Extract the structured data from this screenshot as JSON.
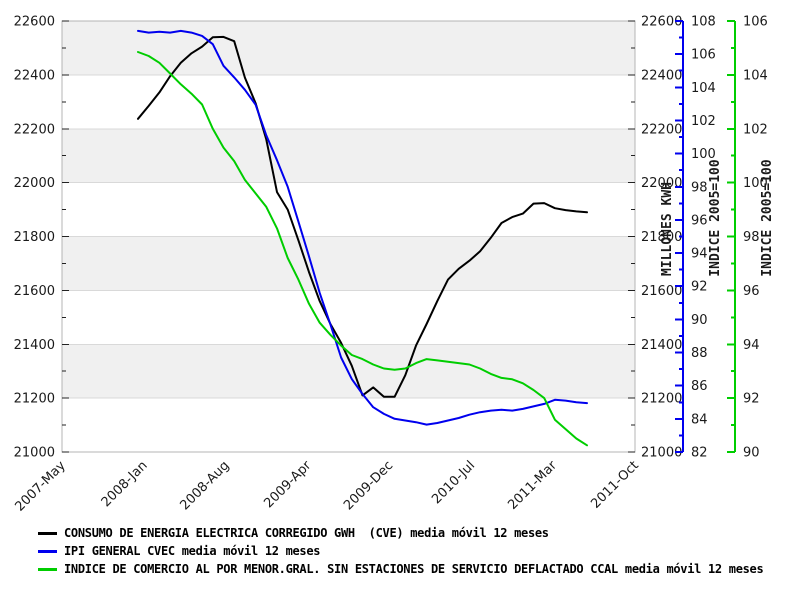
{
  "figure": {
    "background": "#ffffff"
  },
  "chart_data": {
    "type": "line",
    "title": "",
    "x_axis": {
      "tick_labels": [
        "2007-May",
        "2008-Jan",
        "2008-Aug",
        "2009-Apr",
        "2009-Dec",
        "2010-Jul",
        "2011-Mar",
        "2011-Oct"
      ],
      "label_rotation_deg": -45
    },
    "axes": {
      "kwh": {
        "side": "left-and-right",
        "title": "MILLONES KWH",
        "min": 21000,
        "max": 22600,
        "tick_step": 200,
        "minor_step": 100,
        "tick_labels": [
          "21000",
          "21200",
          "21400",
          "21600",
          "21800",
          "22000",
          "22200",
          "22400",
          "22600"
        ],
        "color": "#000000"
      },
      "ipi": {
        "side": "right",
        "title": "INDICE 2005=100",
        "min": 82,
        "max": 108,
        "tick_step": 2,
        "minor_step": 1,
        "tick_labels": [
          "82",
          "84",
          "86",
          "88",
          "90",
          "92",
          "94",
          "96",
          "98",
          "100",
          "102",
          "104",
          "106",
          "108"
        ],
        "color": "#0000ee"
      },
      "comercio": {
        "side": "far-right",
        "title": "INDICE 2005=100",
        "min": 90,
        "max": 106,
        "tick_step": 2,
        "minor_step": 1,
        "tick_labels": [
          "90",
          "92",
          "94",
          "96",
          "98",
          "100",
          "102",
          "104",
          "106"
        ],
        "color": "#00cd00"
      }
    },
    "x_months": [
      "2007-12",
      "2008-01",
      "2008-02",
      "2008-03",
      "2008-04",
      "2008-05",
      "2008-06",
      "2008-07",
      "2008-08",
      "2008-09",
      "2008-10",
      "2008-11",
      "2008-12",
      "2009-01",
      "2009-02",
      "2009-03",
      "2009-04",
      "2009-05",
      "2009-06",
      "2009-07",
      "2009-08",
      "2009-09",
      "2009-10",
      "2009-11",
      "2009-12",
      "2010-01",
      "2010-02",
      "2010-03",
      "2010-04",
      "2010-05",
      "2010-06",
      "2010-07",
      "2010-08",
      "2010-09",
      "2010-10",
      "2010-11",
      "2010-12",
      "2011-01",
      "2011-02",
      "2011-03",
      "2011-04",
      "2011-05",
      "2011-06"
    ],
    "series": [
      {
        "name": "CONSUMO DE ENERGIA ELECTRICA CORREGIDO GWH  (CVE) media móvil 12 meses",
        "axis": "kwh",
        "color": "#000000",
        "values": [
          22237,
          22285,
          22335,
          22395,
          22445,
          22480,
          22505,
          22540,
          22541,
          22525,
          22390,
          22295,
          22160,
          21965,
          21900,
          21786,
          21668,
          21560,
          21475,
          21405,
          21320,
          21210,
          21240,
          21205,
          21205,
          21285,
          21395,
          21475,
          21560,
          21640,
          21680,
          21710,
          21745,
          21795,
          21850,
          21872,
          21885,
          21922,
          21924,
          21905,
          21898,
          21893,
          21890
        ]
      },
      {
        "name": "IPI GENERAL CVEC media móvil 12 meses",
        "axis": "ipi",
        "color": "#0000ee",
        "values": [
          107.4,
          107.3,
          107.35,
          107.3,
          107.4,
          107.3,
          107.1,
          106.6,
          105.3,
          104.6,
          103.85,
          102.95,
          101.1,
          99.6,
          98.0,
          95.9,
          93.8,
          91.6,
          89.7,
          87.7,
          86.4,
          85.5,
          84.7,
          84.3,
          84.0,
          83.9,
          83.8,
          83.65,
          83.75,
          83.9,
          84.05,
          84.25,
          84.4,
          84.5,
          84.55,
          84.5,
          84.6,
          84.75,
          84.9,
          85.15,
          85.1,
          85.0,
          84.95
        ]
      },
      {
        "name": "INDICE DE COMERCIO AL POR MENOR.GRAL. SIN ESTACIONES DE SERVICIO DEFLACTADO CCAL media móvil 12 meses",
        "axis": "comercio",
        "color": "#00cd00",
        "values": [
          104.85,
          104.7,
          104.45,
          104.05,
          103.65,
          103.3,
          102.9,
          102.0,
          101.3,
          100.8,
          100.1,
          99.6,
          99.1,
          98.3,
          97.2,
          96.4,
          95.5,
          94.8,
          94.35,
          93.95,
          93.6,
          93.45,
          93.25,
          93.1,
          93.05,
          93.1,
          93.3,
          93.45,
          93.4,
          93.35,
          93.3,
          93.25,
          93.1,
          92.9,
          92.75,
          92.7,
          92.55,
          92.3,
          92.0,
          91.2,
          90.85,
          90.5,
          90.25
        ]
      }
    ],
    "style": {
      "band_fill": "#f0f0f0",
      "gridline": "#d9d9d9",
      "plot_border": "#b5b5b5",
      "tick_color": "#222222",
      "xlabel_color": "#3c3c3c"
    },
    "layout": {
      "grid": "horizontal alternating bands every 200 kwh-units",
      "legend_position": "bottom-left",
      "line_width": 2
    }
  }
}
